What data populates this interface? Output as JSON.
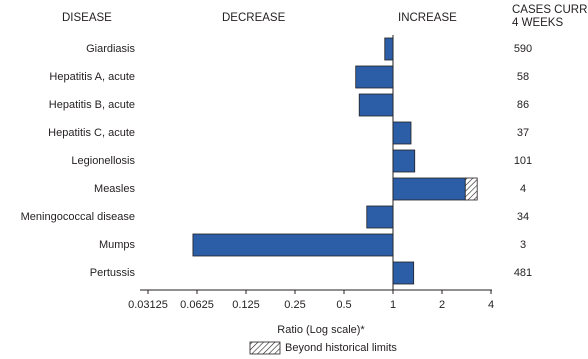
{
  "chart_data": {
    "type": "bar",
    "orientation": "horizontal",
    "headers": {
      "disease": "DISEASE",
      "decrease": "DECREASE",
      "increase": "INCREASE",
      "cases": [
        "CASES CURRENT",
        "4 WEEKS"
      ]
    },
    "categories": [
      "Giardiasis",
      "Hepatitis A, acute",
      "Hepatitis B, acute",
      "Hepatitis C, acute",
      "Legionellosis",
      "Measles",
      "Meningococcal disease",
      "Mumps",
      "Pertussis"
    ],
    "series": [
      {
        "name": "Ratio",
        "color": "#2b5ea7",
        "values": [
          0.89,
          0.59,
          0.62,
          1.29,
          1.36,
          3.29,
          0.69,
          0.059,
          1.34
        ]
      }
    ],
    "cases_current_4_weeks": [
      590,
      58,
      86,
      37,
      101,
      4,
      34,
      3,
      481
    ],
    "beyond_historical_limits": {
      "label": "Beyond historical limits",
      "start": [
        null,
        null,
        null,
        null,
        null,
        2.78,
        null,
        null,
        null
      ]
    },
    "xlabel": "Ratio (Log scale)*",
    "xscale": "log",
    "xbase": 2,
    "baseline": 1,
    "xlim": [
      0.03125,
      4
    ],
    "xticks": [
      0.03125,
      0.0625,
      0.125,
      0.25,
      0.5,
      1,
      2,
      4
    ]
  }
}
